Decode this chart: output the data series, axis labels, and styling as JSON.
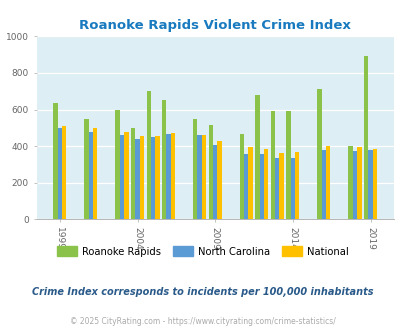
{
  "title": "Roanoke Rapids Violent Crime Index",
  "title_color": "#1a7abf",
  "subtitle": "Crime Index corresponds to incidents per 100,000 inhabitants",
  "subtitle_color": "#2a5a8a",
  "footer": "© 2025 CityRating.com - https://www.cityrating.com/crime-statistics/",
  "footer_color": "#aaaaaa",
  "years": [
    1999,
    2001,
    2003,
    2004,
    2005,
    2006,
    2008,
    2009,
    2011,
    2012,
    2013,
    2014,
    2016,
    2018,
    2019
  ],
  "roanoke": [
    635,
    550,
    600,
    500,
    700,
    650,
    550,
    515,
    465,
    680,
    590,
    590,
    710,
    400,
    890
  ],
  "nc": [
    500,
    480,
    460,
    440,
    450,
    465,
    460,
    405,
    360,
    355,
    335,
    335,
    380,
    375,
    380
  ],
  "national": [
    510,
    500,
    480,
    455,
    455,
    470,
    460,
    430,
    395,
    385,
    365,
    370,
    400,
    395,
    385
  ],
  "roanoke_color": "#8bc34a",
  "nc_color": "#5b9bd5",
  "national_color": "#ffc000",
  "plot_bg": "#deeef5",
  "ylim": [
    0,
    1000
  ],
  "yticks": [
    0,
    200,
    400,
    600,
    800,
    1000
  ],
  "xtick_labels": [
    "1999",
    "2004",
    "2009",
    "2014",
    "2019"
  ],
  "xtick_positions": [
    1999,
    2004,
    2009,
    2014,
    2019
  ],
  "bar_width": 0.28,
  "bar_gap": 0.28,
  "xlim_left": 1997.5,
  "xlim_right": 2020.5
}
